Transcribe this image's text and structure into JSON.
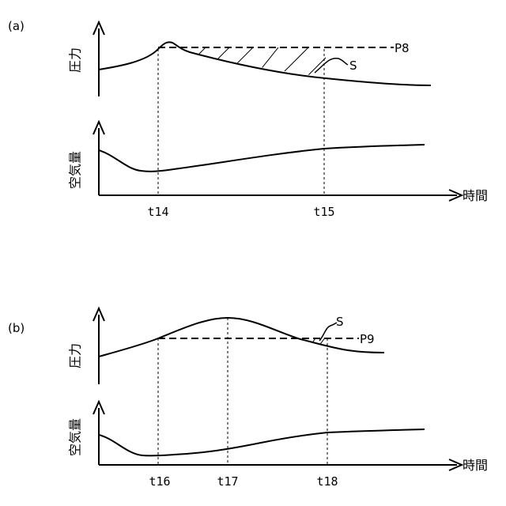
{
  "panel_a": {
    "label": "(a)",
    "pressure_axis": "圧力",
    "air_axis": "空気量",
    "time_axis": "時間",
    "pressure_level_label": "P8",
    "area_label": "S",
    "t_first": "t14",
    "t_second": "t15"
  },
  "panel_b": {
    "label": "(b)",
    "pressure_axis": "圧力",
    "air_axis": "空気量",
    "time_axis": "時間",
    "pressure_level_label": "P9",
    "area_label": "S",
    "t_first": "t16",
    "t_peak": "t17",
    "t_second": "t18"
  }
}
